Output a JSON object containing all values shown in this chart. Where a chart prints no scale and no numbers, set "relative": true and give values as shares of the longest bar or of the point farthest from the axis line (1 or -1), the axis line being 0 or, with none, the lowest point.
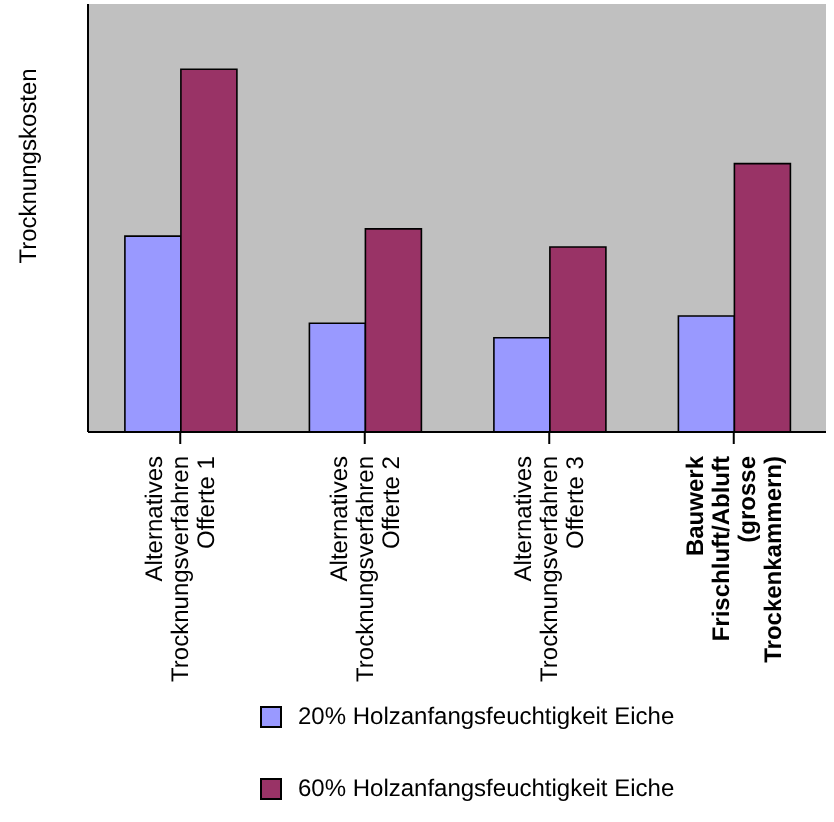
{
  "chart_data": {
    "type": "bar",
    "relative": true,
    "ylabel": "Trocknungskosten",
    "categories": [
      "Alternatives\nTrocknungsverfahren\nOfferte 1",
      "Alternatives\nTrocknungsverfahren\nOfferte 2",
      "Alternatives\nTrocknungsverfahren\nOfferte 3",
      "Bauwerk\nFrischluft/Abluft\n(grosse\nTrockenkammern)"
    ],
    "series": [
      {
        "name": "20% Holzanfangsfeuchtigkeit Eiche",
        "color": "#9999ff",
        "values": [
          0.54,
          0.3,
          0.26,
          0.32
        ]
      },
      {
        "name": "60% Holzanfangsfeuchtigkeit Eiche",
        "color": "#993366",
        "values": [
          1,
          0.56,
          0.51,
          0.74
        ]
      }
    ],
    "legend": "bottom",
    "grid": false
  }
}
